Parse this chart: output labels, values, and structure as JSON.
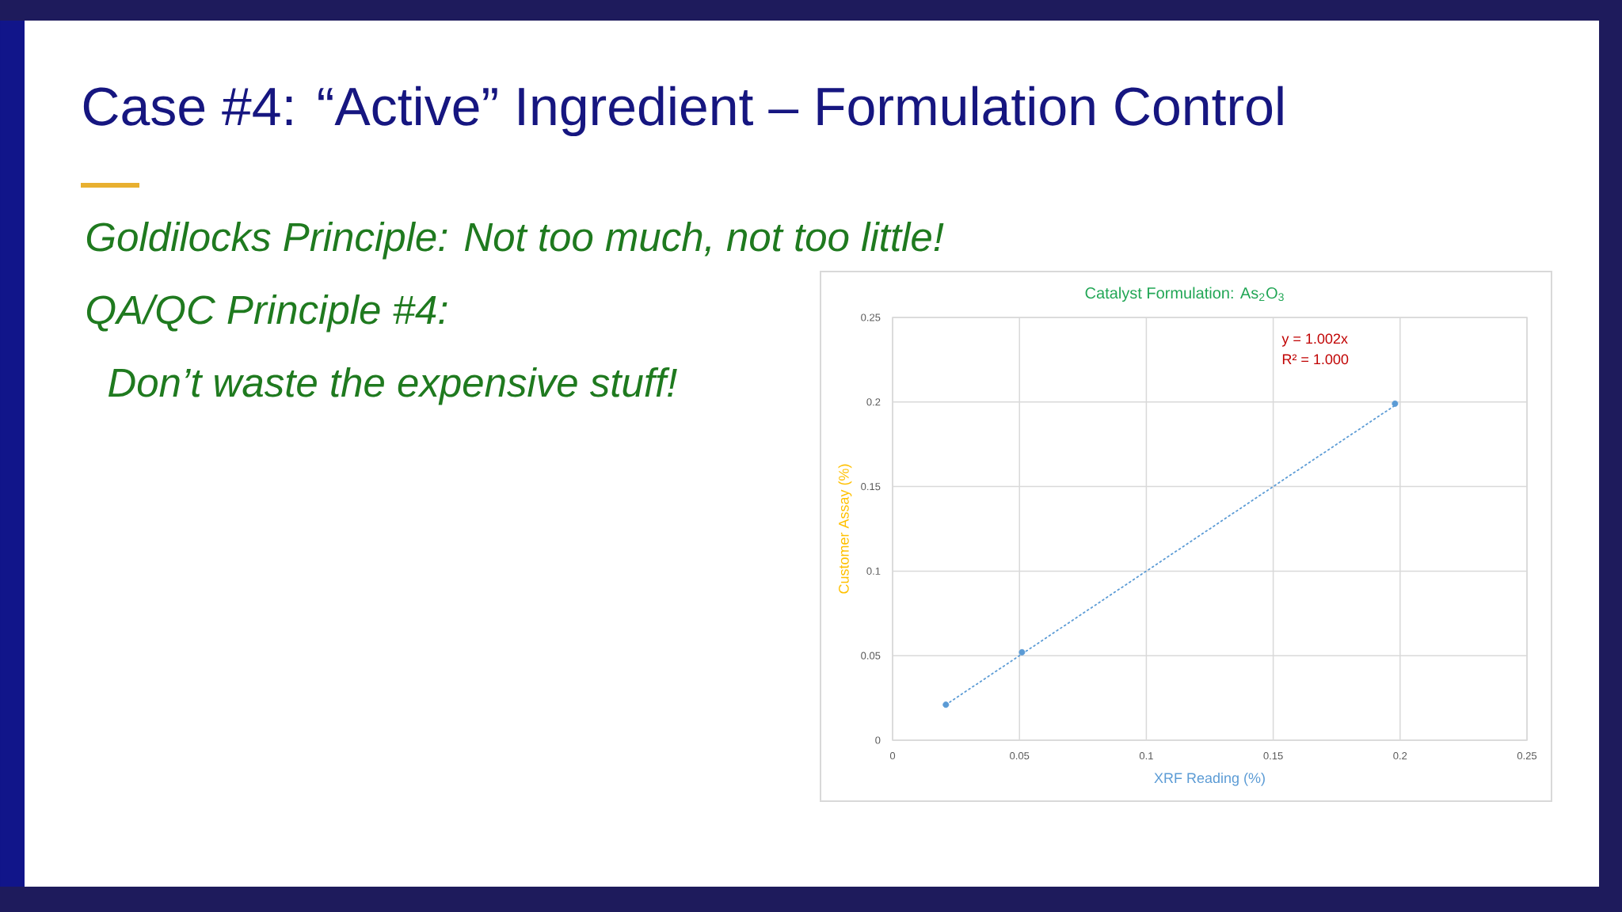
{
  "chart_data": {
    "type": "scatter",
    "title": "Case #4: “Active” Ingredient – Formulation Control",
    "subtitle": "Catalyst Formulation: As$_{2}$O$_{3}$",
    "xlabel": "XRF Reading (%)",
    "ylabel": "Customer Assay (%)",
    "annotations": [
      "Goldilocks Principle: Not too much, not too little!",
      "QA/QC Principle #4:",
      "Don’t waste the expensive stuff!",
      "y = 1.002x",
      "R² = 1.000"
    ],
    "xlim": [
      0,
      0.25
    ],
    "ylim": [
      0,
      0.25
    ],
    "xticks": [
      0,
      0.05,
      0.1,
      0.15,
      0.2,
      0.25
    ],
    "yticks": [
      0,
      0.05,
      0.1,
      0.15,
      0.2,
      0.25
    ],
    "grid": true,
    "series": [
      {
        "color": "#5b9bd5",
        "marker": "circle",
        "x": [
          0.021,
          0.051,
          0.198
        ],
        "values": [
          0.021,
          0.052,
          0.199
        ]
      },
      {
        "type": "line",
        "color": "#5b9bd5",
        "line_style": "dotted",
        "x": [
          0.021,
          0.198
        ],
        "values": [
          0.021,
          0.198
        ]
      }
    ]
  }
}
